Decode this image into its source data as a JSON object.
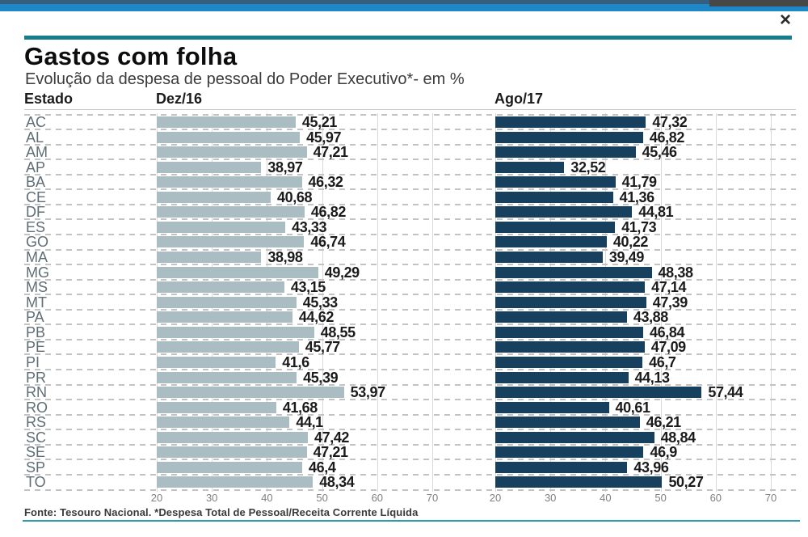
{
  "window": {
    "close_label": "×"
  },
  "header": {
    "title": "Gastos com folha",
    "subtitle": "Evolução da despesa de pessoal do Poder Executivo*- em %"
  },
  "columns": {
    "state": "Estado",
    "left_series": "Dez/16",
    "right_series": "Ago/17"
  },
  "footer": {
    "source": "Fonte: Tesouro Nacional. *Despesa Total de Pessoal/Receita Corrente Líquida"
  },
  "chart_data": {
    "type": "bar",
    "orientation": "horizontal",
    "title": "Gastos com folha",
    "subtitle": "Evolução da despesa de pessoal do Poder Executivo*- em %",
    "categories": [
      "AC",
      "AL",
      "AM",
      "AP",
      "BA",
      "CE",
      "DF",
      "ES",
      "GO",
      "MA",
      "MG",
      "MS",
      "MT",
      "PA",
      "PB",
      "PE",
      "PI",
      "PR",
      "RN",
      "RO",
      "RS",
      "SC",
      "SE",
      "SP",
      "TO"
    ],
    "series": [
      {
        "name": "Dez/16",
        "color": "#a9bdc3",
        "values": [
          45.21,
          45.97,
          47.21,
          38.97,
          46.32,
          40.68,
          46.82,
          43.33,
          46.74,
          38.98,
          49.29,
          43.15,
          45.33,
          44.62,
          48.55,
          45.77,
          41.6,
          45.39,
          53.97,
          41.68,
          44.1,
          47.42,
          47.21,
          46.4,
          48.34
        ],
        "labels": [
          "45,21",
          "45,97",
          "47,21",
          "38,97",
          "46,32",
          "40,68",
          "46,82",
          "43,33",
          "46,74",
          "38,98",
          "49,29",
          "43,15",
          "45,33",
          "44,62",
          "48,55",
          "45,77",
          "41,6",
          "45,39",
          "53,97",
          "41,68",
          "44,1",
          "47,42",
          "47,21",
          "46,4",
          "48,34"
        ]
      },
      {
        "name": "Ago/17",
        "color": "#16405e",
        "values": [
          47.32,
          46.82,
          45.46,
          32.52,
          41.79,
          41.36,
          44.81,
          41.73,
          40.22,
          39.49,
          48.38,
          47.14,
          47.39,
          43.88,
          46.84,
          47.09,
          46.7,
          44.13,
          57.44,
          40.61,
          46.21,
          48.84,
          46.9,
          43.96,
          50.27
        ],
        "labels": [
          "47,32",
          "46,82",
          "45,46",
          "32,52",
          "41,79",
          "41,36",
          "44,81",
          "41,73",
          "40,22",
          "39,49",
          "48,38",
          "47,14",
          "47,39",
          "43,88",
          "46,84",
          "47,09",
          "46,7",
          "44,13",
          "57,44",
          "40,61",
          "46,21",
          "48,84",
          "46,9",
          "43,96",
          "50,27"
        ]
      }
    ],
    "x_ticks": [
      "20",
      "30",
      "40",
      "50",
      "60",
      "70"
    ],
    "xlim": [
      20,
      70
    ],
    "grid": "solid vertical gridlines at ticks; dashed horizontal row separators",
    "legend_position": "column headers above each panel",
    "source": "Fonte: Tesouro Nacional. *Despesa Total de Pessoal/Receita Corrente Líquida"
  }
}
